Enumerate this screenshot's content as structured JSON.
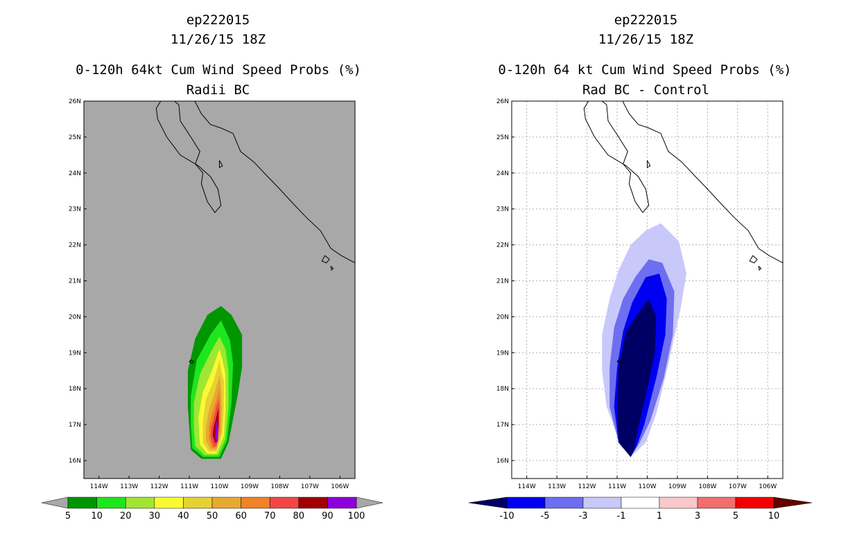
{
  "left_panel": {
    "title_line1": "ep222015",
    "title_line2": "11/26/15 18Z",
    "title_line3": "0-120h 64kt Cum Wind Speed Probs (%)",
    "title_line4": "Radii BC"
  },
  "right_panel": {
    "title_line1": "ep222015",
    "title_line2": "11/26/15 18Z",
    "title_line3": "0-120h 64 kt Cum Wind Speed Probs (%)",
    "title_line4": "Rad BC - Control"
  },
  "colors": {
    "land_bg": "#a8a8a8",
    "grid": "#b0b0b0"
  },
  "chart_data": [
    {
      "type": "heatmap",
      "title": "0-120h 64kt Cum Wind Speed Probs (%)",
      "subtitle": "Radii BC",
      "lon_ticks": [
        "114W",
        "113W",
        "112W",
        "111W",
        "110W",
        "109W",
        "108W",
        "107W",
        "106W"
      ],
      "lat_ticks": [
        "16N",
        "17N",
        "18N",
        "19N",
        "20N",
        "21N",
        "22N",
        "23N",
        "24N",
        "25N",
        "26N"
      ],
      "xlim_lon": [
        -114.5,
        -105.5
      ],
      "ylim_lat": [
        15.5,
        26
      ],
      "grid": false,
      "background": "#a8a8a8",
      "colorbar": {
        "labels": [
          "5",
          "10",
          "20",
          "30",
          "40",
          "50",
          "60",
          "70",
          "80",
          "90",
          "100"
        ],
        "colors": [
          "#009600",
          "#1ee61e",
          "#a0e632",
          "#fafa32",
          "#e6d232",
          "#e6aa32",
          "#f08228",
          "#f04646",
          "#a00000",
          "#8c00dc"
        ],
        "arrow_color": "#a8a8a8"
      },
      "contours": [
        {
          "level": 5,
          "color": "#009600",
          "poly": [
            [
              -110.95,
              16.3
            ],
            [
              -110.6,
              16.05
            ],
            [
              -109.95,
              16.05
            ],
            [
              -109.7,
              16.5
            ],
            [
              -109.4,
              17.8
            ],
            [
              -109.25,
              18.6
            ],
            [
              -109.25,
              19.5
            ],
            [
              -109.6,
              20.05
            ],
            [
              -109.95,
              20.3
            ],
            [
              -110.4,
              20.05
            ],
            [
              -110.8,
              19.4
            ],
            [
              -111.05,
              18.5
            ],
            [
              -111.05,
              17.5
            ]
          ]
        },
        {
          "level": 10,
          "color": "#1ee61e",
          "poly": [
            [
              -110.9,
              16.35
            ],
            [
              -110.55,
              16.1
            ],
            [
              -110.0,
              16.1
            ],
            [
              -109.75,
              16.55
            ],
            [
              -109.6,
              17.6
            ],
            [
              -109.55,
              18.7
            ],
            [
              -109.65,
              19.35
            ],
            [
              -109.95,
              19.9
            ],
            [
              -110.3,
              19.5
            ],
            [
              -110.75,
              18.8
            ],
            [
              -110.95,
              17.8
            ],
            [
              -110.95,
              17.0
            ]
          ]
        },
        {
          "level": 20,
          "color": "#a0e632",
          "poly": [
            [
              -110.8,
              16.4
            ],
            [
              -110.5,
              16.15
            ],
            [
              -110.05,
              16.15
            ],
            [
              -109.8,
              16.6
            ],
            [
              -109.7,
              17.5
            ],
            [
              -109.7,
              18.5
            ],
            [
              -109.8,
              19.1
            ],
            [
              -110.0,
              19.45
            ],
            [
              -110.3,
              19.0
            ],
            [
              -110.65,
              18.4
            ],
            [
              -110.85,
              17.6
            ],
            [
              -110.85,
              16.9
            ]
          ]
        },
        {
          "level": 30,
          "color": "#fafa32",
          "poly": [
            [
              -110.65,
              16.45
            ],
            [
              -110.4,
              16.2
            ],
            [
              -110.1,
              16.2
            ],
            [
              -109.85,
              16.7
            ],
            [
              -109.8,
              17.5
            ],
            [
              -109.8,
              18.4
            ],
            [
              -109.9,
              18.8
            ],
            [
              -110.0,
              19.1
            ],
            [
              -110.25,
              18.5
            ],
            [
              -110.55,
              17.9
            ],
            [
              -110.7,
              17.2
            ]
          ]
        },
        {
          "level": 40,
          "color": "#e6d232",
          "poly": [
            [
              -110.55,
              16.5
            ],
            [
              -110.35,
              16.25
            ],
            [
              -110.1,
              16.25
            ],
            [
              -109.9,
              16.75
            ],
            [
              -109.85,
              17.5
            ],
            [
              -109.85,
              18.2
            ],
            [
              -109.95,
              18.55
            ],
            [
              -110.0,
              18.8
            ],
            [
              -110.2,
              18.2
            ],
            [
              -110.45,
              17.7
            ],
            [
              -110.55,
              17.1
            ]
          ]
        },
        {
          "level": 50,
          "color": "#e6aa32",
          "poly": [
            [
              -110.45,
              16.55
            ],
            [
              -110.3,
              16.3
            ],
            [
              -110.1,
              16.3
            ],
            [
              -109.95,
              16.8
            ],
            [
              -109.92,
              17.5
            ],
            [
              -109.95,
              18.1
            ],
            [
              -110.0,
              18.4
            ],
            [
              -110.15,
              17.9
            ],
            [
              -110.35,
              17.4
            ],
            [
              -110.45,
              16.9
            ]
          ]
        },
        {
          "level": 60,
          "color": "#f08228",
          "poly": [
            [
              -110.35,
              16.6
            ],
            [
              -110.25,
              16.35
            ],
            [
              -110.1,
              16.35
            ],
            [
              -109.98,
              16.85
            ],
            [
              -109.97,
              17.5
            ],
            [
              -110.0,
              18.05
            ],
            [
              -110.1,
              17.7
            ],
            [
              -110.25,
              17.3
            ],
            [
              -110.35,
              16.95
            ]
          ]
        },
        {
          "level": 70,
          "color": "#f04646",
          "poly": [
            [
              -110.3,
              16.65
            ],
            [
              -110.2,
              16.4
            ],
            [
              -110.1,
              16.4
            ],
            [
              -110.02,
              16.9
            ],
            [
              -110.0,
              17.4
            ],
            [
              -110.02,
              17.7
            ],
            [
              -110.1,
              17.5
            ],
            [
              -110.2,
              17.15
            ],
            [
              -110.28,
              16.9
            ]
          ]
        },
        {
          "level": 80,
          "color": "#a00000",
          "poly": [
            [
              -110.22,
              16.7
            ],
            [
              -110.15,
              16.5
            ],
            [
              -110.08,
              16.5
            ],
            [
              -110.03,
              16.95
            ],
            [
              -110.03,
              17.45
            ],
            [
              -110.08,
              17.3
            ],
            [
              -110.15,
              17.05
            ],
            [
              -110.2,
              16.9
            ]
          ]
        },
        {
          "level": 90,
          "color": "#8c00dc",
          "poly": [
            [
              -110.15,
              16.65
            ],
            [
              -110.1,
              16.5
            ],
            [
              -110.05,
              16.55
            ],
            [
              -110.05,
              17.0
            ],
            [
              -110.08,
              17.15
            ],
            [
              -110.13,
              16.95
            ]
          ]
        }
      ]
    },
    {
      "type": "heatmap",
      "title": "0-120h 64 kt Cum Wind Speed Probs (%)",
      "subtitle": "Rad BC - Control",
      "lon_ticks": [
        "114W",
        "113W",
        "112W",
        "111W",
        "110W",
        "109W",
        "108W",
        "107W",
        "106W"
      ],
      "lat_ticks": [
        "16N",
        "17N",
        "18N",
        "19N",
        "20N",
        "21N",
        "22N",
        "23N",
        "24N",
        "25N",
        "26N"
      ],
      "xlim_lon": [
        -114.5,
        -105.5
      ],
      "ylim_lat": [
        15.5,
        26
      ],
      "grid": true,
      "background": "#ffffff",
      "colorbar": {
        "labels": [
          "-10",
          "-5",
          "-3",
          "-1",
          "1",
          "3",
          "5",
          "10"
        ],
        "colors": [
          "#000064",
          "#0000f0",
          "#6e6ef0",
          "#c8c8fa",
          "#ffffff",
          "#fac8c8",
          "#f06e6e",
          "#f00000",
          "#640000"
        ]
      },
      "contours": [
        {
          "level": -1,
          "color": "#c8c8fa",
          "poly": [
            [
              -110.55,
              16.1
            ],
            [
              -110.9,
              16.5
            ],
            [
              -111.35,
              17.5
            ],
            [
              -111.5,
              18.5
            ],
            [
              -111.5,
              19.5
            ],
            [
              -111.25,
              20.5
            ],
            [
              -110.95,
              21.3
            ],
            [
              -110.55,
              22.0
            ],
            [
              -110.05,
              22.4
            ],
            [
              -109.55,
              22.6
            ],
            [
              -108.95,
              22.1
            ],
            [
              -108.7,
              21.2
            ],
            [
              -108.9,
              20.2
            ],
            [
              -109.35,
              18.5
            ],
            [
              -109.7,
              17.3
            ],
            [
              -110.05,
              16.5
            ]
          ]
        },
        {
          "level": -3,
          "color": "#6e6ef0",
          "poly": [
            [
              -110.55,
              16.1
            ],
            [
              -110.95,
              16.5
            ],
            [
              -111.25,
              17.5
            ],
            [
              -111.25,
              18.6
            ],
            [
              -111.1,
              19.7
            ],
            [
              -110.8,
              20.5
            ],
            [
              -110.4,
              21.1
            ],
            [
              -109.95,
              21.6
            ],
            [
              -109.5,
              21.5
            ],
            [
              -109.1,
              20.7
            ],
            [
              -109.15,
              19.5
            ],
            [
              -109.45,
              18.3
            ],
            [
              -109.9,
              17.1
            ],
            [
              -110.25,
              16.5
            ]
          ]
        },
        {
          "level": -5,
          "color": "#0000f0",
          "poly": [
            [
              -110.55,
              16.1
            ],
            [
              -110.95,
              16.5
            ],
            [
              -111.1,
              17.5
            ],
            [
              -111.0,
              18.6
            ],
            [
              -110.8,
              19.6
            ],
            [
              -110.5,
              20.4
            ],
            [
              -110.05,
              21.1
            ],
            [
              -109.6,
              21.2
            ],
            [
              -109.35,
              20.5
            ],
            [
              -109.4,
              19.5
            ],
            [
              -109.7,
              18.3
            ],
            [
              -110.1,
              17.0
            ],
            [
              -110.35,
              16.4
            ]
          ]
        },
        {
          "level": -10,
          "color": "#000064",
          "poly": [
            [
              -110.55,
              16.1
            ],
            [
              -110.95,
              16.5
            ],
            [
              -111.0,
              17.5
            ],
            [
              -110.95,
              18.6
            ],
            [
              -110.7,
              19.6
            ],
            [
              -110.3,
              20.1
            ],
            [
              -109.95,
              20.5
            ],
            [
              -109.7,
              20.0
            ],
            [
              -109.75,
              19.0
            ],
            [
              -110.0,
              18.0
            ],
            [
              -110.3,
              16.9
            ],
            [
              -110.45,
              16.3
            ]
          ]
        }
      ]
    }
  ],
  "coastline": {
    "mainland": [
      [
        -110.85,
        26.05
      ],
      [
        -110.6,
        25.65
      ],
      [
        -110.3,
        25.35
      ],
      [
        -109.95,
        25.25
      ],
      [
        -109.55,
        25.1
      ],
      [
        -109.3,
        24.6
      ],
      [
        -108.85,
        24.3
      ],
      [
        -108.4,
        23.9
      ],
      [
        -108.05,
        23.6
      ],
      [
        -107.5,
        23.1
      ],
      [
        -107.1,
        22.75
      ],
      [
        -106.65,
        22.4
      ],
      [
        -106.3,
        21.9
      ],
      [
        -105.95,
        21.7
      ],
      [
        -105.5,
        21.5
      ]
    ],
    "baja": [
      [
        -111.95,
        26.0
      ],
      [
        -112.1,
        25.8
      ],
      [
        -112.05,
        25.5
      ],
      [
        -111.75,
        25.0
      ],
      [
        -111.3,
        24.5
      ],
      [
        -110.7,
        24.2
      ],
      [
        -110.3,
        23.9
      ],
      [
        -110.05,
        23.55
      ],
      [
        -109.95,
        23.1
      ],
      [
        -110.15,
        22.9
      ],
      [
        -110.4,
        23.2
      ],
      [
        -110.6,
        23.7
      ],
      [
        -110.55,
        24.0
      ],
      [
        -110.8,
        24.25
      ],
      [
        -110.65,
        24.6
      ],
      [
        -110.95,
        25.0
      ],
      [
        -111.3,
        25.45
      ],
      [
        -111.35,
        25.9
      ],
      [
        -111.5,
        26.0
      ]
    ],
    "islands": [
      [
        [
          -106.5,
          21.7
        ],
        [
          -106.35,
          21.6
        ],
        [
          -106.45,
          21.5
        ],
        [
          -106.6,
          21.55
        ]
      ],
      [
        [
          -106.3,
          21.4
        ],
        [
          -106.22,
          21.35
        ],
        [
          -106.28,
          21.3
        ]
      ],
      [
        [
          -110.95,
          18.8
        ],
        [
          -110.85,
          18.75
        ],
        [
          -110.9,
          18.7
        ],
        [
          -111.0,
          18.75
        ]
      ],
      [
        [
          -110.0,
          24.35
        ],
        [
          -109.9,
          24.2
        ],
        [
          -110.0,
          24.15
        ]
      ]
    ]
  }
}
